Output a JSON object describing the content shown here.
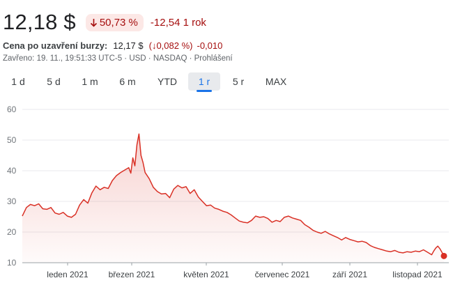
{
  "header": {
    "price": "12,18 $",
    "change_pct": "50,73 %",
    "change_abs": "-12,54 1 rok",
    "arrow_icon": "arrow-down-icon",
    "down_color": "#a50e0e"
  },
  "close": {
    "label": "Cena po uzavření burzy:",
    "price": "12,17 $",
    "change_pct": "(↓0,082 %)",
    "change_abs": "-0,010"
  },
  "meta": "Zavřeno: 19. 11., 19:51:33 UTC-5 · USD · NASDAQ · Prohlášení",
  "tabs": [
    {
      "label": "1 d",
      "active": false
    },
    {
      "label": "5 d",
      "active": false
    },
    {
      "label": "1 m",
      "active": false
    },
    {
      "label": "6 m",
      "active": false
    },
    {
      "label": "YTD",
      "active": false
    },
    {
      "label": "1 r",
      "active": true
    },
    {
      "label": "5 r",
      "active": false
    },
    {
      "label": "MAX",
      "active": false
    }
  ],
  "chart_data": {
    "type": "area",
    "ylim": [
      10,
      60
    ],
    "yticks": [
      "60",
      "50",
      "40",
      "30",
      "20",
      "10"
    ],
    "xticks": [
      "leden 2021",
      "březen 2021",
      "květen 2021",
      "červenec 2021",
      "září 2021",
      "listopad 2021"
    ],
    "line_color": "#d93025",
    "grid": "horizontal",
    "series": [
      {
        "values": [
          [
            0,
            25.2
          ],
          [
            2,
            28.0
          ],
          [
            4,
            29.0
          ],
          [
            6,
            28.6
          ],
          [
            8,
            29.2
          ],
          [
            10,
            27.6
          ],
          [
            12,
            27.4
          ],
          [
            14,
            28.0
          ],
          [
            16,
            26.2
          ],
          [
            18,
            25.8
          ],
          [
            20,
            26.4
          ],
          [
            22,
            25.2
          ],
          [
            24,
            24.8
          ],
          [
            26,
            25.8
          ],
          [
            28,
            28.8
          ],
          [
            30,
            30.6
          ],
          [
            32,
            29.4
          ],
          [
            34,
            32.8
          ],
          [
            36,
            35.0
          ],
          [
            38,
            33.8
          ],
          [
            40,
            34.6
          ],
          [
            42,
            34.2
          ],
          [
            44,
            36.8
          ],
          [
            46,
            38.4
          ],
          [
            48,
            39.4
          ],
          [
            50,
            40.2
          ],
          [
            52,
            41.0
          ],
          [
            53,
            39.2
          ],
          [
            54,
            44.2
          ],
          [
            55,
            41.6
          ],
          [
            56,
            48.5
          ],
          [
            57,
            52.0
          ],
          [
            58,
            45.0
          ],
          [
            59,
            42.6
          ],
          [
            60,
            39.4
          ],
          [
            62,
            37.4
          ],
          [
            64,
            34.6
          ],
          [
            66,
            33.2
          ],
          [
            68,
            32.4
          ],
          [
            70,
            32.6
          ],
          [
            72,
            31.2
          ],
          [
            74,
            34.0
          ],
          [
            76,
            35.2
          ],
          [
            78,
            34.4
          ],
          [
            80,
            34.8
          ],
          [
            82,
            32.6
          ],
          [
            84,
            33.8
          ],
          [
            86,
            31.4
          ],
          [
            88,
            30.0
          ],
          [
            90,
            28.6
          ],
          [
            92,
            28.8
          ],
          [
            94,
            27.8
          ],
          [
            96,
            27.4
          ],
          [
            98,
            26.8
          ],
          [
            100,
            26.4
          ],
          [
            102,
            25.6
          ],
          [
            104,
            24.6
          ],
          [
            106,
            23.6
          ],
          [
            108,
            23.2
          ],
          [
            110,
            23.0
          ],
          [
            112,
            23.8
          ],
          [
            114,
            25.2
          ],
          [
            116,
            24.8
          ],
          [
            118,
            25.0
          ],
          [
            120,
            24.4
          ],
          [
            122,
            23.2
          ],
          [
            124,
            23.8
          ],
          [
            126,
            23.4
          ],
          [
            128,
            24.8
          ],
          [
            130,
            25.2
          ],
          [
            132,
            24.6
          ],
          [
            134,
            24.2
          ],
          [
            136,
            23.8
          ],
          [
            138,
            22.4
          ],
          [
            140,
            21.6
          ],
          [
            142,
            20.6
          ],
          [
            144,
            20.0
          ],
          [
            146,
            19.6
          ],
          [
            148,
            20.2
          ],
          [
            150,
            19.4
          ],
          [
            152,
            18.8
          ],
          [
            154,
            18.2
          ],
          [
            156,
            17.4
          ],
          [
            158,
            18.2
          ],
          [
            160,
            17.6
          ],
          [
            162,
            17.2
          ],
          [
            164,
            16.8
          ],
          [
            166,
            17.0
          ],
          [
            168,
            16.6
          ],
          [
            170,
            15.6
          ],
          [
            172,
            15.0
          ],
          [
            174,
            14.6
          ],
          [
            176,
            14.2
          ],
          [
            178,
            13.8
          ],
          [
            180,
            13.6
          ],
          [
            182,
            14.0
          ],
          [
            184,
            13.4
          ],
          [
            186,
            13.2
          ],
          [
            188,
            13.6
          ],
          [
            190,
            13.4
          ],
          [
            192,
            13.8
          ],
          [
            194,
            13.6
          ],
          [
            196,
            14.2
          ],
          [
            198,
            13.4
          ],
          [
            200,
            12.6
          ],
          [
            201,
            13.8
          ],
          [
            202,
            14.8
          ],
          [
            203,
            15.4
          ],
          [
            204,
            14.6
          ],
          [
            205,
            13.4
          ],
          [
            206,
            12.2
          ]
        ]
      }
    ]
  }
}
